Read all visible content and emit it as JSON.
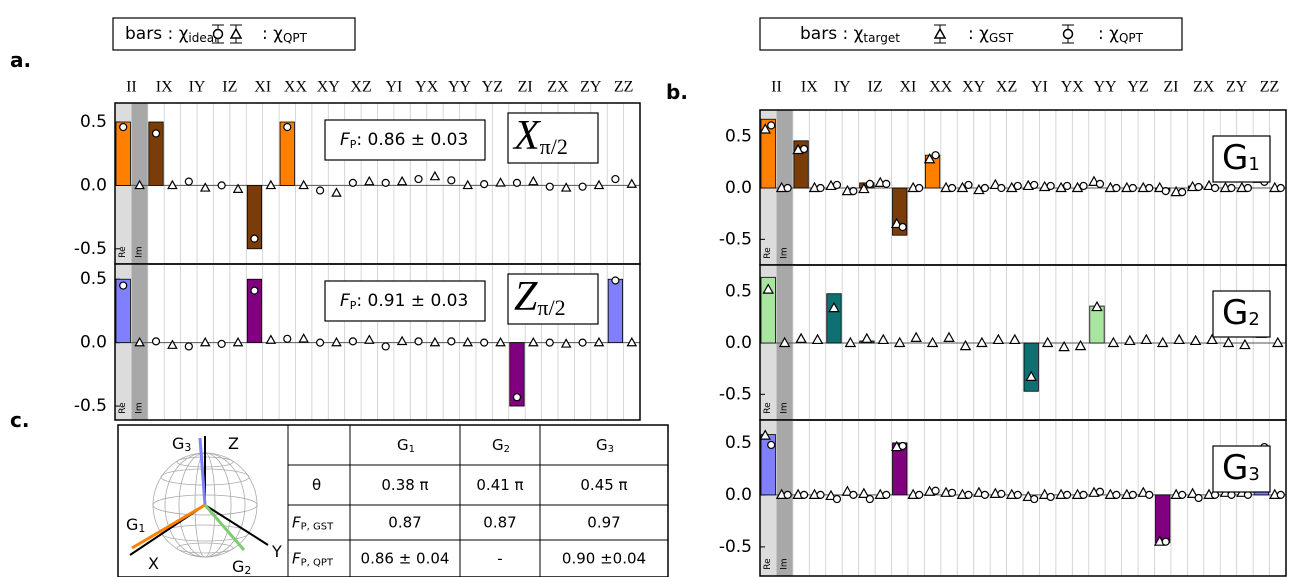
{
  "chart_data": [
    {
      "type": "bar",
      "panel_label": "a.",
      "legend": [
        {
          "text": "bars : χ",
          "sub": "ideal"
        },
        {
          "text": ": χ",
          "sub": "QPT"
        }
      ],
      "categories": [
        "II",
        "IX",
        "IY",
        "IZ",
        "XI",
        "XX",
        "XY",
        "XZ",
        "YI",
        "YX",
        "YY",
        "YZ",
        "ZI",
        "ZX",
        "ZY",
        "ZZ"
      ],
      "slot_labels": [
        "Re",
        "Im"
      ],
      "subplots": [
        {
          "gate": {
            "text": "X",
            "sub": "π/2"
          },
          "fidelity": {
            "text": "F",
            "sub": "P",
            "value": ": 0.86 ± 0.03"
          },
          "ylim": [
            -0.62,
            0.65
          ],
          "yticks": [
            0.5,
            {
              "value": 0,
              "label": "0.0"
            },
            -0.5
          ],
          "bars": [
            0.5,
            0.5,
            0,
            0,
            -0.5,
            0.5,
            0,
            0,
            0,
            0,
            0,
            0,
            0,
            0,
            0,
            0
          ],
          "bar_colors": [
            "#ff8000",
            "#7a3d0a",
            "#7a3d0a",
            "#7a3d0a",
            "#7a3d0a",
            "#ff8000",
            "#7a3d0a",
            "#7a3d0a",
            "#7a3d0a",
            "#7a3d0a",
            "#7a3d0a",
            "#7a3d0a",
            "#7a3d0a",
            "#7a3d0a",
            "#7a3d0a",
            "#ff8000"
          ],
          "qpt_re": [
            0.46,
            0.41,
            0.03,
            0,
            -0.42,
            0.46,
            -0.04,
            0.02,
            0.02,
            0.05,
            0.04,
            0.01,
            0.02,
            -0.01,
            -0.01,
            0.05
          ],
          "qpt_im": [
            0,
            0,
            -0.02,
            -0.03,
            0,
            0,
            -0.06,
            0.03,
            0.03,
            0.07,
            0,
            0.02,
            0.03,
            -0.02,
            0,
            0.01
          ]
        },
        {
          "gate": {
            "text": "Z",
            "sub": "π/2"
          },
          "fidelity": {
            "text": "F",
            "sub": "P",
            "value": ": 0.91 ± 0.03"
          },
          "ylim": [
            -0.61,
            0.62
          ],
          "yticks": [
            0.5,
            {
              "value": 0,
              "label": "0.0"
            },
            -0.5
          ],
          "bars": [
            0.5,
            0,
            0,
            0,
            0.5,
            0,
            0,
            0,
            0,
            0,
            0,
            0,
            -0.5,
            0,
            0,
            0.5
          ],
          "bar_colors": [
            "#8080ff",
            "#800080",
            "#800080",
            "#800080",
            "#800080",
            "#800080",
            "#800080",
            "#800080",
            "#800080",
            "#800080",
            "#800080",
            "#800080",
            "#800080",
            "#800080",
            "#800080",
            "#8080ff"
          ],
          "qpt_re": [
            0.45,
            0.01,
            -0.03,
            -0.01,
            0.41,
            0.03,
            0,
            0.01,
            -0.03,
            0.01,
            0.01,
            0,
            -0.43,
            0,
            0,
            0.49
          ],
          "qpt_im": [
            0,
            -0.02,
            0,
            0,
            0.02,
            0.03,
            0,
            0.02,
            0.01,
            0,
            0,
            0,
            0,
            -0.01,
            0,
            0
          ]
        }
      ]
    },
    {
      "type": "bar",
      "panel_label": "b.",
      "legend": [
        {
          "text": "bars : χ",
          "sub": "target"
        },
        {
          "text": ": χ",
          "sub": "GST"
        },
        {
          "text": ": χ",
          "sub": "QPT"
        }
      ],
      "categories": [
        "II",
        "IX",
        "IY",
        "IZ",
        "XI",
        "XX",
        "XY",
        "XZ",
        "YI",
        "YX",
        "YY",
        "YZ",
        "ZI",
        "ZX",
        "ZY",
        "ZZ"
      ],
      "slot_labels": [
        "Re",
        "Im"
      ],
      "subplots": [
        {
          "gate": {
            "text": "G",
            "sub": "1"
          },
          "ylim": [
            -0.75,
            0.76
          ],
          "yticks": [
            0.5,
            {
              "value": 0,
              "label": "0.0"
            },
            -0.5
          ],
          "bars": [
            0.67,
            0.46,
            0,
            0.05,
            -0.46,
            0.32,
            0,
            0,
            0,
            0,
            0,
            0,
            -0.03,
            0.02,
            0,
            0
          ],
          "bar_colors": [
            "#ff8000",
            "#7a3d0a",
            "#7a3d0a",
            "#7a3d0a",
            "#7a3d0a",
            "#ff8000",
            "#7a3d0a",
            "#7a3d0a",
            "#7a3d0a",
            "#7a3d0a",
            "#7a3d0a",
            "#7a3d0a",
            "#7a3d0a",
            "#7a3d0a",
            "#7a3d0a",
            "#ff8000"
          ],
          "gst_re": [
            0.57,
            0.37,
            0.02,
            -0.01,
            -0.35,
            0.28,
            0,
            0.03,
            0.02,
            0,
            0.06,
            0,
            0,
            0.01,
            0,
            0.09
          ],
          "gst_im": [
            0,
            0,
            -0.03,
            0.05,
            0,
            0,
            -0.02,
            0,
            0.01,
            0,
            0,
            0,
            -0.04,
            0.02,
            0,
            0
          ],
          "qpt_re": [
            0.61,
            0.38,
            0.03,
            0.04,
            -0.38,
            0.32,
            0.03,
            0,
            0.03,
            0.02,
            0.04,
            0,
            -0.03,
            0.01,
            0,
            0.06
          ],
          "qpt_im": [
            0,
            0,
            -0.03,
            0.04,
            0,
            0,
            0,
            0.02,
            0.02,
            0.02,
            0,
            0,
            -0.04,
            0,
            0,
            0
          ]
        },
        {
          "gate": {
            "text": "G",
            "sub": "2"
          },
          "ylim": [
            -0.75,
            0.76
          ],
          "yticks": [
            0.5,
            {
              "value": 0,
              "label": "0.0"
            },
            -0.5
          ],
          "bars": [
            0.64,
            0,
            0.48,
            0.02,
            0,
            0,
            0,
            0,
            -0.47,
            0,
            0.36,
            0,
            0,
            0,
            0,
            0
          ],
          "bar_colors": [
            "#a8e6a0",
            "#0e7070",
            "#0e7070",
            "#0e7070",
            "#0e7070",
            "#0e7070",
            "#0e7070",
            "#0e7070",
            "#0e7070",
            "#0e7070",
            "#a8e6a0",
            "#0e7070",
            "#0e7070",
            "#0e7070",
            "#0e7070",
            "#0e7070"
          ],
          "gst_re": [
            0.52,
            0.04,
            0.34,
            0.04,
            0,
            0,
            -0.03,
            0.03,
            -0.33,
            -0.04,
            0.35,
            0.02,
            0,
            0.02,
            0,
            0.09
          ],
          "gst_im": [
            0,
            0.03,
            0,
            0.03,
            0.05,
            0.05,
            0,
            0.03,
            0,
            -0.03,
            0,
            0.03,
            0.03,
            0.03,
            -0.02,
            0
          ]
        },
        {
          "gate": {
            "text": "G",
            "sub": "3"
          },
          "ylim": [
            -0.78,
            0.72
          ],
          "yticks": [
            0.5,
            {
              "value": 0,
              "label": "0.0"
            },
            -0.5
          ],
          "bars": [
            0.58,
            0,
            0,
            0,
            0.5,
            0,
            0,
            0,
            0,
            0,
            0,
            0,
            -0.46,
            0,
            0,
            0.44
          ],
          "bar_colors": [
            "#8080ff",
            "#800080",
            "#800080",
            "#800080",
            "#800080",
            "#800080",
            "#800080",
            "#800080",
            "#800080",
            "#800080",
            "#800080",
            "#800080",
            "#800080",
            "#800080",
            "#800080",
            "#8080ff"
          ],
          "gst_re": [
            0.57,
            0,
            -0.01,
            0.01,
            0.46,
            0.03,
            0,
            0.01,
            -0.02,
            0,
            0.02,
            0,
            -0.45,
            0.01,
            0.02,
            0.41
          ],
          "gst_im": [
            0,
            0,
            0.03,
            0,
            0,
            0.02,
            0.02,
            0,
            0,
            0,
            0,
            0.02,
            0,
            0,
            0.02,
            0
          ],
          "qpt_re": [
            0.48,
            0,
            -0.04,
            -0.04,
            0.47,
            0.04,
            0,
            0.01,
            -0.04,
            0,
            0.03,
            0,
            -0.45,
            -0.03,
            0,
            0.46
          ],
          "qpt_im": [
            0,
            0,
            0,
            0,
            0,
            0.02,
            0,
            0,
            -0.02,
            0,
            0,
            0,
            0,
            0,
            0,
            0
          ]
        }
      ]
    }
  ],
  "panel_c": {
    "label": "c.",
    "bloch_labels": [
      {
        "text": "G",
        "sub": "3"
      },
      {
        "text": "Z"
      },
      {
        "text": "G",
        "sub": "1"
      },
      {
        "text": "X"
      },
      {
        "text": "G",
        "sub": "2"
      },
      {
        "text": "Y"
      }
    ],
    "table": {
      "columns": [
        {
          "text": "G",
          "sub": "1"
        },
        {
          "text": "G",
          "sub": "2"
        },
        {
          "text": "G",
          "sub": "3"
        }
      ],
      "rows": [
        {
          "label": {
            "text": "θ"
          },
          "cells": [
            "0.38 π",
            "0.41 π",
            "0.45 π"
          ]
        },
        {
          "label": {
            "text": "F",
            "sub": "P, GST"
          },
          "cells": [
            "0.87",
            "0.87",
            "0.97"
          ]
        },
        {
          "label": {
            "text": "F",
            "sub": "P, QPT"
          },
          "cells": [
            "0.86 ± 0.04",
            "-",
            "0.90 ±0.04"
          ]
        }
      ]
    }
  }
}
